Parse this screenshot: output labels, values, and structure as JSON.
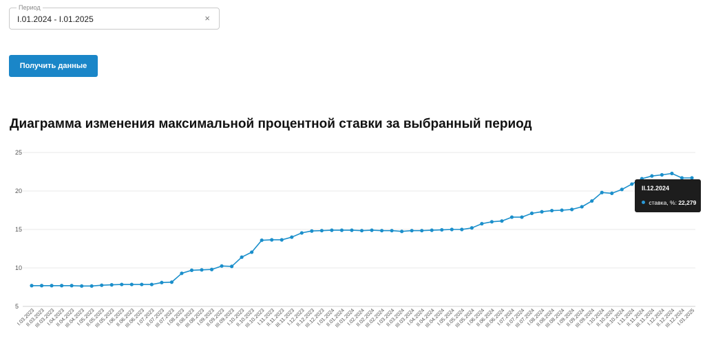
{
  "period_filter": {
    "label": "Период",
    "value": "I.01.2024 - I.01.2025",
    "clear_glyph": "×"
  },
  "actions": {
    "get_data_label": "Получить данные"
  },
  "chart_title": "Диаграмма изменения максимальной процентной ставки за выбранный период",
  "tooltip": {
    "date": "II.12.2024",
    "series_label": "ставка, %:",
    "value": "22,279"
  },
  "colors": {
    "line": "#1b8fcb",
    "button": "#1a86c8",
    "tooltip_bg": "#1d1d1d"
  },
  "chart_data": {
    "type": "line",
    "title": "Диаграмма изменения максимальной процентной ставки за выбранный период",
    "xlabel": "",
    "ylabel": "",
    "ylim": [
      5,
      25
    ],
    "yticks": [
      5,
      10,
      15,
      20,
      25
    ],
    "grid": true,
    "legend": "none",
    "categories": [
      "I.03.2023",
      "II.03.2023",
      "III.03.2023",
      "I.04.2023",
      "II.04.2023",
      "III.04.2023",
      "I.05.2023",
      "II.05.2023",
      "III.05.2023",
      "I.06.2023",
      "II.06.2023",
      "III.06.2023",
      "I.07.2023",
      "II.07.2023",
      "III.07.2023",
      "I.08.2023",
      "II.08.2023",
      "III.08.2023",
      "I.09.2023",
      "II.09.2023",
      "III.09.2023",
      "I.10.2023",
      "II.10.2023",
      "III.10.2023",
      "I.11.2023",
      "II.11.2023",
      "III.11.2023",
      "I.12.2023",
      "II.12.2023",
      "III.12.2023",
      "I.01.2024",
      "II.01.2024",
      "III.01.2024",
      "I.02.2024",
      "II.02.2024",
      "III.02.2024",
      "I.03.2024",
      "II.03.2024",
      "III.03.2024",
      "I.04.2024",
      "II.04.2024",
      "III.04.2024",
      "I.05.2024",
      "II.05.2024",
      "III.05.2024",
      "I.06.2024",
      "II.06.2024",
      "III.06.2024",
      "I.07.2024",
      "II.07.2024",
      "III.07.2024",
      "I.08.2024",
      "II.08.2024",
      "III.08.2024",
      "I.09.2024",
      "II.09.2024",
      "III.09.2024",
      "I.10.2024",
      "II.10.2024",
      "III.10.2024",
      "I.11.2024",
      "II.11.2024",
      "III.11.2024",
      "I.12.2024",
      "II.12.2024",
      "III.12.2024",
      "I.01.2025"
    ],
    "series": [
      {
        "values": [
          7.7,
          7.7,
          7.7,
          7.7,
          7.7,
          7.65,
          7.65,
          7.75,
          7.8,
          7.85,
          7.85,
          7.85,
          7.85,
          8.1,
          8.15,
          9.3,
          9.7,
          9.75,
          9.8,
          10.25,
          10.2,
          11.4,
          12.05,
          13.6,
          13.65,
          13.65,
          14.0,
          14.55,
          14.8,
          14.85,
          14.9,
          14.9,
          14.9,
          14.85,
          14.9,
          14.85,
          14.85,
          14.75,
          14.85,
          14.85,
          14.9,
          14.95,
          15.0,
          15.0,
          15.2,
          15.75,
          16.0,
          16.1,
          16.6,
          16.6,
          17.1,
          17.3,
          17.45,
          17.5,
          17.6,
          17.95,
          18.7,
          19.8,
          19.7,
          20.2,
          20.9,
          21.6,
          21.95,
          22.1,
          22.279,
          21.7,
          21.7
        ]
      }
    ]
  }
}
